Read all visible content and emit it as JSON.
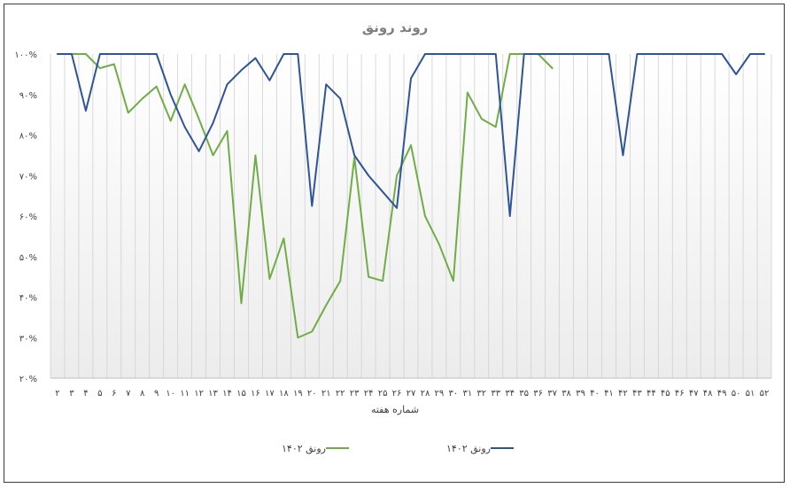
{
  "chart_data": {
    "type": "line",
    "title": "روند رونق",
    "xlabel": "شماره هفته",
    "ylabel": "",
    "ylim": [
      20,
      100
    ],
    "y_ticks": [
      {
        "value": 100,
        "label": "۱۰۰%"
      },
      {
        "value": 90,
        "label": "۹۰%"
      },
      {
        "value": 80,
        "label": "۸۰%"
      },
      {
        "value": 70,
        "label": "۷۰%"
      },
      {
        "value": 60,
        "label": "۶۰%"
      },
      {
        "value": 50,
        "label": "۵۰%"
      },
      {
        "value": 40,
        "label": "۴۰%"
      },
      {
        "value": 30,
        "label": "۳۰%"
      },
      {
        "value": 20,
        "label": "۲۰%"
      }
    ],
    "x": [
      2,
      3,
      4,
      5,
      6,
      7,
      8,
      9,
      10,
      11,
      12,
      13,
      14,
      15,
      16,
      17,
      18,
      19,
      20,
      21,
      22,
      23,
      24,
      25,
      26,
      27,
      28,
      29,
      30,
      31,
      32,
      33,
      34,
      35,
      36,
      37,
      38,
      39,
      40,
      41,
      42,
      43,
      44,
      45,
      46,
      47,
      48,
      49,
      50,
      51,
      52
    ],
    "x_tick_labels": [
      "۲",
      "۳",
      "۴",
      "۵",
      "۶",
      "۷",
      "۸",
      "۹",
      "۱۰",
      "۱۱",
      "۱۲",
      "۱۳",
      "۱۴",
      "۱۵",
      "۱۶",
      "۱۷",
      "۱۸",
      "۱۹",
      "۲۰",
      "۲۱",
      "۲۲",
      "۲۳",
      "۲۴",
      "۲۵",
      "۲۶",
      "۲۷",
      "۲۸",
      "۲۹",
      "۳۰",
      "۳۱",
      "۳۲",
      "۳۳",
      "۳۴",
      "۳۵",
      "۳۶",
      "۳۷",
      "۳۸",
      "۳۹",
      "۴۰",
      "۴۱",
      "۴۲",
      "۴۳",
      "۴۴",
      "۴۵",
      "۴۶",
      "۴۷",
      "۴۸",
      "۴۹",
      "۵۰",
      "۵۱",
      "۵۲"
    ],
    "grid": "vertical",
    "legend": "bottom",
    "series": [
      {
        "name": "رونق ۱۴۰۲",
        "color": "#70ad47",
        "values": [
          100,
          100,
          100,
          96.5,
          97.5,
          85.5,
          89,
          92,
          83.5,
          92.5,
          84,
          75,
          81,
          38.5,
          75,
          44.5,
          54.5,
          30,
          31.5,
          38,
          44,
          74.5,
          45,
          44,
          70,
          77.5,
          60,
          53,
          44,
          90.5,
          84,
          82,
          100,
          100,
          100,
          96.5,
          null,
          null,
          null,
          null,
          null,
          null,
          null,
          null,
          null,
          null,
          null,
          null,
          null,
          null,
          null
        ]
      },
      {
        "name": "رونق ۱۴۰۲",
        "color": "#2e5597",
        "values": [
          100,
          100,
          86,
          100,
          100,
          100,
          100,
          100,
          90,
          82,
          76,
          83,
          92.5,
          96,
          99,
          93.5,
          100,
          100,
          62.5,
          92.5,
          89,
          75,
          70,
          66,
          62,
          94,
          100,
          100,
          100,
          100,
          100,
          100,
          60,
          100,
          100,
          100,
          100,
          100,
          100,
          100,
          75,
          100,
          100,
          100,
          100,
          100,
          100,
          100,
          95,
          100,
          100
        ]
      }
    ]
  },
  "legend_items": [
    {
      "label": "رونق ۱۴۰۲",
      "color": "#70ad47"
    },
    {
      "label": "رونق ۱۴۰۲",
      "color": "#2e5597"
    }
  ]
}
